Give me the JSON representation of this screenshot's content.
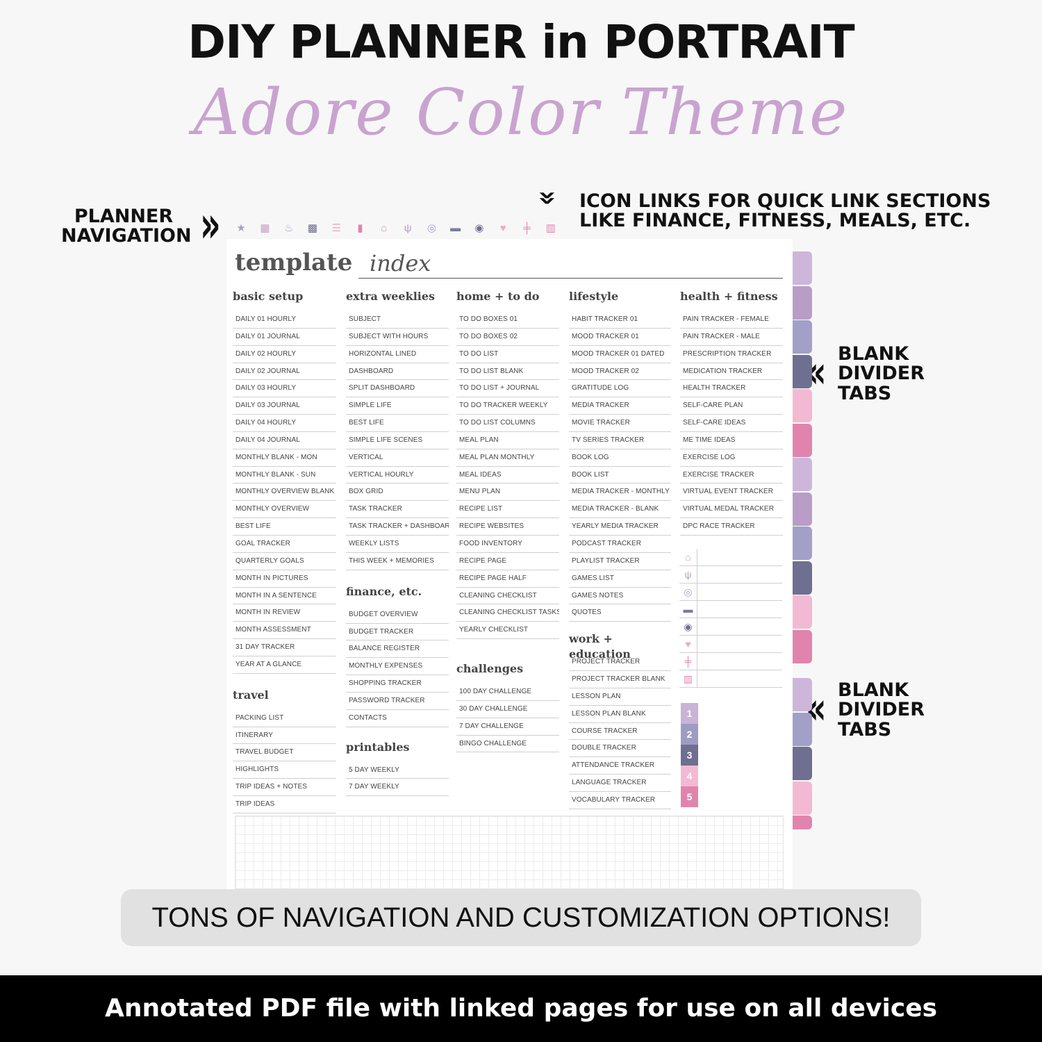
{
  "header": {
    "headline": "DIY  PLANNER in PORTRAIT",
    "script_title": "Adore Color Theme"
  },
  "callouts": {
    "planner_nav": "PLANNER NAVIGATION",
    "icon_links_line1": "ICON LINKS FOR QUICK LINK SECTIONS",
    "icon_links_line2": "LIKE FINANCE, FITNESS, MEALS, ETC.",
    "divider_tabs_top": "BLANK DIVIDER TABS",
    "divider_tabs_bottom": "BLANK DIVIDER TABS"
  },
  "nav_icons": [
    {
      "name": "star-icon",
      "glyph": "★",
      "color": "#a79fc8"
    },
    {
      "name": "calendar-icon",
      "glyph": "▦",
      "color": "#c6a0c4"
    },
    {
      "name": "cake-icon",
      "glyph": "♨",
      "color": "#a79fc8"
    },
    {
      "name": "grid-icon",
      "glyph": "▩",
      "color": "#6e6f91"
    },
    {
      "name": "list-icon",
      "glyph": "☰",
      "color": "#efa9c8"
    },
    {
      "name": "bookmark-icon",
      "glyph": "▮",
      "color": "#e184ad"
    },
    {
      "name": "home-icon",
      "glyph": "⌂",
      "color": "#c6a0c4"
    },
    {
      "name": "utensils-icon",
      "glyph": "ψ",
      "color": "#b49ac8"
    },
    {
      "name": "coins-icon",
      "glyph": "◎",
      "color": "#a79fc8"
    },
    {
      "name": "folder-icon",
      "glyph": "▬",
      "color": "#7a7ba0"
    },
    {
      "name": "location-pin-icon",
      "glyph": "◉",
      "color": "#6e6f91"
    },
    {
      "name": "heart-icon",
      "glyph": "♥",
      "color": "#efa9c8"
    },
    {
      "name": "dumbbell-icon",
      "glyph": "╪",
      "color": "#e184ad"
    },
    {
      "name": "books-icon",
      "glyph": "▥",
      "color": "#e184ad"
    }
  ],
  "page": {
    "title": "template",
    "title_script": "index"
  },
  "columns": [
    {
      "sections": [
        {
          "title": "basic setup",
          "items": [
            "DAILY 01 HOURLY",
            "DAILY 01 JOURNAL",
            "DAILY 02 HOURLY",
            "DAILY 02 JOURNAL",
            "DAILY 03 HOURLY",
            "DAILY 03 JOURNAL",
            "DAILY 04 HOURLY",
            "DAILY 04 JOURNAL",
            "MONTHLY BLANK - MON",
            "MONTHLY BLANK - SUN",
            "MONTHLY OVERVIEW BLANK",
            "MONTHLY OVERVIEW",
            "BEST LIFE",
            "GOAL TRACKER",
            "QUARTERLY GOALS",
            "MONTH IN PICTURES",
            "MONTH IN A SENTENCE",
            "MONTH IN REVIEW",
            "MONTH ASSESSMENT",
            "31 DAY TRACKER",
            "YEAR AT A GLANCE"
          ]
        },
        {
          "title": "travel",
          "items": [
            "PACKING LIST",
            "ITINERARY",
            "TRAVEL BUDGET",
            "HIGHLIGHTS",
            "TRIP IDEAS + NOTES",
            "TRIP IDEAS"
          ]
        }
      ]
    },
    {
      "sections": [
        {
          "title": "extra weeklies",
          "items": [
            "SUBJECT",
            "SUBJECT WITH HOURS",
            "HORIZONTAL LINED",
            "DASHBOARD",
            "SPLIT DASHBOARD",
            "SIMPLE LIFE",
            "BEST LIFE",
            "SIMPLE LIFE SCENES",
            "VERTICAL",
            "VERTICAL HOURLY",
            "BOX GRID",
            "TASK TRACKER",
            "TASK TRACKER + DASHBOARD",
            "WEEKLY LISTS",
            "THIS WEEK + MEMORIES"
          ]
        },
        {
          "title": "finance, etc.",
          "items": [
            "BUDGET OVERVIEW",
            "BUDGET TRACKER",
            "BALANCE REGISTER",
            "MONTHLY EXPENSES",
            "SHOPPING TRACKER",
            "PASSWORD TRACKER",
            "CONTACTS"
          ]
        },
        {
          "title": "printables",
          "items": [
            "5 DAY WEEKLY",
            "7 DAY WEEKLY"
          ]
        }
      ]
    },
    {
      "sections": [
        {
          "title": "home + to do",
          "items": [
            "TO DO BOXES 01",
            "TO DO BOXES 02",
            "TO DO LIST",
            "TO DO LIST BLANK",
            "TO DO LIST + JOURNAL",
            "TO DO TRACKER WEEKLY",
            "TO DO LIST COLUMNS",
            "MEAL PLAN",
            "MEAL PLAN MONTHLY",
            "MEAL IDEAS",
            "MENU PLAN",
            "RECIPE LIST",
            "RECIPE WEBSITES",
            "FOOD INVENTORY",
            "RECIPE PAGE",
            "RECIPE PAGE HALF",
            "CLEANING CHECKLIST",
            "CLEANING CHECKLIST TASKS",
            "YEARLY CHECKLIST"
          ]
        },
        {
          "title": "challenges",
          "items": [
            "100 DAY CHALLENGE",
            "30 DAY CHALLENGE",
            "7 DAY CHALLENGE",
            "BINGO CHALLENGE"
          ]
        }
      ]
    },
    {
      "sections": [
        {
          "title": "lifestyle",
          "items": [
            "HABIT TRACKER 01",
            "MOOD TRACKER 01",
            "MOOD TRACKER 01 DATED",
            "MOOD TRACKER 02",
            "GRATITUDE LOG",
            "MEDIA TRACKER",
            "MOVIE TRACKER",
            "TV SERIES TRACKER",
            "BOOK LOG",
            "BOOK LIST",
            "MEDIA TRACKER - MONTHLY",
            "MEDIA TRACKER - BLANK",
            "YEARLY MEDIA TRACKER",
            "PODCAST TRACKER",
            "PLAYLIST TRACKER",
            "GAMES LIST",
            "GAMES NOTES",
            "QUOTES"
          ]
        },
        {
          "title": "work + education",
          "items": [
            "PROJECT TRACKER",
            "PROJECT TRACKER BLANK",
            "LESSON PLAN",
            "LESSON PLAN BLANK",
            "COURSE TRACKER",
            "DOUBLE TRACKER",
            "ATTENDANCE TRACKER",
            "LANGUAGE TRACKER",
            "VOCABULARY TRACKER"
          ]
        }
      ]
    },
    {
      "sections": [
        {
          "title": "health + fitness",
          "items": [
            "PAIN TRACKER - FEMALE",
            "PAIN TRACKER - MALE",
            "PRESCRIPTION TRACKER",
            "MEDICATION TRACKER",
            "HEALTH TRACKER",
            "SELF-CARE PLAN",
            "SELF-CARE IDEAS",
            "ME TIME IDEAS",
            "EXERCISE LOG",
            "EXERCISE TRACKER",
            "VIRTUAL EVENT TRACKER",
            "VIRTUAL MEDAL TRACKER",
            "DPC RACE TRACKER"
          ]
        }
      ]
    }
  ],
  "quick_icons": [
    {
      "name": "home-icon",
      "glyph": "⌂",
      "color": "#c6a0c4"
    },
    {
      "name": "utensils-icon",
      "glyph": "ψ",
      "color": "#b49ac8"
    },
    {
      "name": "coins-icon",
      "glyph": "◎",
      "color": "#a79fc8"
    },
    {
      "name": "folder-icon",
      "glyph": "▬",
      "color": "#7a7ba0"
    },
    {
      "name": "location-pin-icon",
      "glyph": "◉",
      "color": "#6e6f91"
    },
    {
      "name": "heart-icon",
      "glyph": "♥",
      "color": "#efa9c8"
    },
    {
      "name": "dumbbell-icon",
      "glyph": "╪",
      "color": "#e184ad"
    },
    {
      "name": "books-icon",
      "glyph": "▥",
      "color": "#e184ad"
    }
  ],
  "numbers": [
    {
      "label": "1",
      "color": "#c9b3d6"
    },
    {
      "label": "2",
      "color": "#9f9cc4"
    },
    {
      "label": "3",
      "color": "#6e6f91"
    },
    {
      "label": "4",
      "color": "#f3b9d2"
    },
    {
      "label": "5",
      "color": "#e184ad"
    }
  ],
  "tabs_top": [
    "#cdb6d9",
    "#b99dc7",
    "#a29fc8",
    "#6e6f91",
    "#f3b9d2",
    "#e184ad",
    "#cdb6d9",
    "#b99dc7",
    "#a29fc8",
    "#6e6f91",
    "#f3b9d2",
    "#e184ad"
  ],
  "tabs_bottom": [
    "#cdb6d9",
    "#a29fc8",
    "#6e6f91",
    "#f3b9d2",
    "#e184ad"
  ],
  "banner": "TONS OF NAVIGATION AND CUSTOMIZATION OPTIONS!",
  "footer": "Annotated PDF file with linked pages for use on all devices"
}
